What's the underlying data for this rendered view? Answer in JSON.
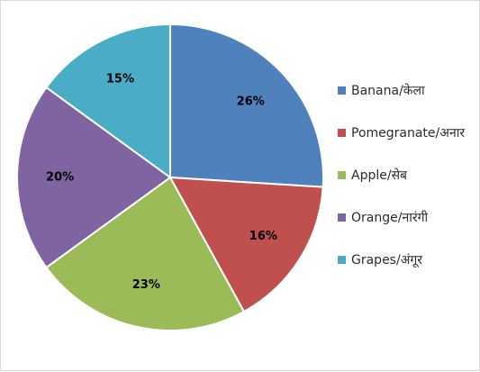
{
  "chart_data": {
    "type": "pie",
    "title": "",
    "categories": [
      "Banana/केला",
      "Pomegranate/अनार",
      "Apple/सेब",
      "Orange/नारंगी",
      "Grapes/अंगूर"
    ],
    "values": [
      26,
      16,
      23,
      20,
      15
    ],
    "value_labels": [
      "26%",
      "16%",
      "23%",
      "20%",
      "15%"
    ],
    "colors": [
      "#4F81BD",
      "#C0504D",
      "#9BBB59",
      "#8064A2",
      "#4BACC6"
    ],
    "start_angle": "12 o'clock",
    "direction": "clockwise",
    "legend_position": "right"
  }
}
